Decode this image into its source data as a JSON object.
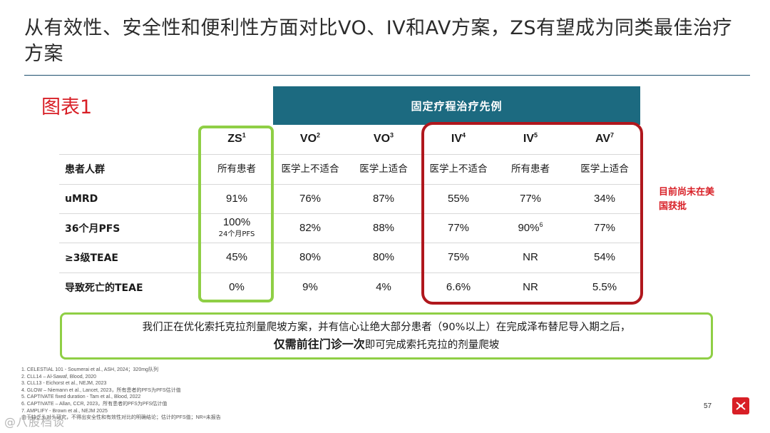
{
  "title": "从有效性、安全性和便利性方面对比VO、IV和AV方案，ZS有望成为同类最佳治疗方案",
  "chart_label": "图表1",
  "banner": "固定疗程治疗先例",
  "columns": [
    {
      "name": "ZS",
      "sup": "1"
    },
    {
      "name": "VO",
      "sup": "2"
    },
    {
      "name": "VO",
      "sup": "3"
    },
    {
      "name": "IV",
      "sup": "4"
    },
    {
      "name": "IV",
      "sup": "5"
    },
    {
      "name": "AV",
      "sup": "7"
    }
  ],
  "rows": [
    {
      "label": "患者人群",
      "cells": [
        {
          "v": "所有患者"
        },
        {
          "v": "医学上不适合"
        },
        {
          "v": "医学上适合"
        },
        {
          "v": "医学上不适合"
        },
        {
          "v": "所有患者"
        },
        {
          "v": "医学上适合"
        }
      ]
    },
    {
      "label": "uMRD",
      "cells": [
        {
          "v": "91%"
        },
        {
          "v": "76%"
        },
        {
          "v": "87%"
        },
        {
          "v": "55%"
        },
        {
          "v": "77%"
        },
        {
          "v": "34%"
        }
      ]
    },
    {
      "label": "36个月PFS",
      "cells": [
        {
          "v": "100%",
          "sub": "24个月PFS"
        },
        {
          "v": "82%"
        },
        {
          "v": "88%"
        },
        {
          "v": "77%"
        },
        {
          "v": "90%",
          "sup": "6"
        },
        {
          "v": "77%"
        }
      ]
    },
    {
      "label": "≥3级TEAE",
      "cells": [
        {
          "v": "45%"
        },
        {
          "v": "80%"
        },
        {
          "v": "80%"
        },
        {
          "v": "75%"
        },
        {
          "v": "NR"
        },
        {
          "v": "54%"
        }
      ]
    },
    {
      "label": "导致死亡的TEAE",
      "cells": [
        {
          "v": "0%"
        },
        {
          "v": "9%"
        },
        {
          "v": "4%"
        },
        {
          "v": "6.6%"
        },
        {
          "v": "NR"
        },
        {
          "v": "5.5%"
        }
      ]
    }
  ],
  "red_note": "目前尚未在美国获批",
  "callout": {
    "line1": "我们正在优化索托克拉剂量爬坡方案，并有信心让绝大部分患者（90%以上）在完成泽布替尼导入期之后，",
    "line2_bold": "仅需前往门诊一次",
    "line2_rest": "即可完成索托克拉的剂量爬坡"
  },
  "footnotes": [
    "1. CELESTIAL 101 - Soumerai et al., ASH, 2024；320mg队列",
    "2. CLL14 – Al-Sawaf, Blood, 2020",
    "3. CLL13 - Eichorst et al., NEJM, 2023",
    "4. GLOW – Niemann et al., Lancet, 2023，所有患者的PFS为PFS估计值",
    "5. CAPTIVATE fixed duration - Tam et al., Blood, 2022",
    "6. CAPTIVATE – Allan, CCR, 2023，所有患者的PFS为PFS估计值",
    "7. AMPLIFY - Brown et al., NEJM 2025",
    "由于缺乏头对头研究，不得出安全性和有效性对比的明确结论；估计的PFS值；NR=未报告"
  ],
  "page_number": "57",
  "watermark": "@八股档谈"
}
